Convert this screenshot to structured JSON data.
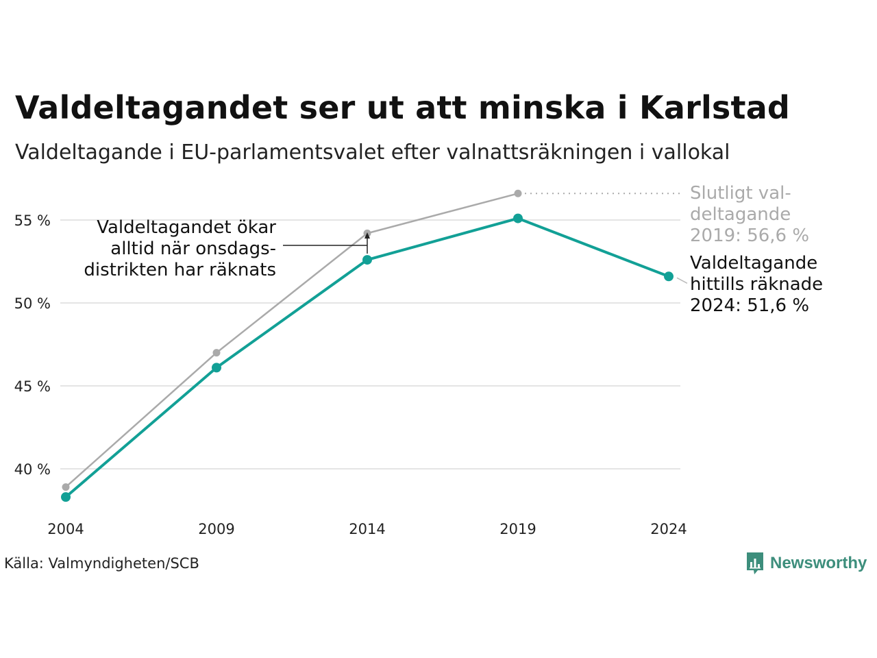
{
  "title": "Valdeltagandet ser ut att minska i Karlstad",
  "subtitle": "Valdeltagande i EU-parlamentsvalet efter valnattsräkningen i vallokal",
  "source": "Källa: Valmyndigheten/SCB",
  "brand": "Newsworthy",
  "colors": {
    "counted": "#12a096",
    "final": "#aaaaaa",
    "grid": "#e4e4e4",
    "brand": "#3d8e7c"
  },
  "chart_data": {
    "type": "line",
    "x": [
      2004,
      2009,
      2014,
      2019,
      2024
    ],
    "x_tick_labels": [
      "2004",
      "2009",
      "2014",
      "2019",
      "2024"
    ],
    "y_ticks": [
      40,
      45,
      50,
      55
    ],
    "y_tick_labels": [
      "40 %",
      "45 %",
      "50 %",
      "55 %"
    ],
    "ylim": [
      37.5,
      57.5
    ],
    "grid": true,
    "series": [
      {
        "id": "final",
        "values": [
          38.9,
          47.0,
          54.2,
          56.6,
          null
        ]
      },
      {
        "id": "counted",
        "values": [
          38.3,
          46.1,
          52.6,
          55.1,
          51.6
        ]
      }
    ],
    "annotations": {
      "final_label": [
        "Slutligt val-",
        "deltagande",
        "2019: 56,6 %"
      ],
      "counted_label": [
        "Valdeltagande",
        "hittills räknade",
        "2024: 51,6 %"
      ],
      "note": [
        "Valdeltagandet ökar",
        "alltid när onsdags-",
        "distrikten har räknats"
      ]
    }
  }
}
